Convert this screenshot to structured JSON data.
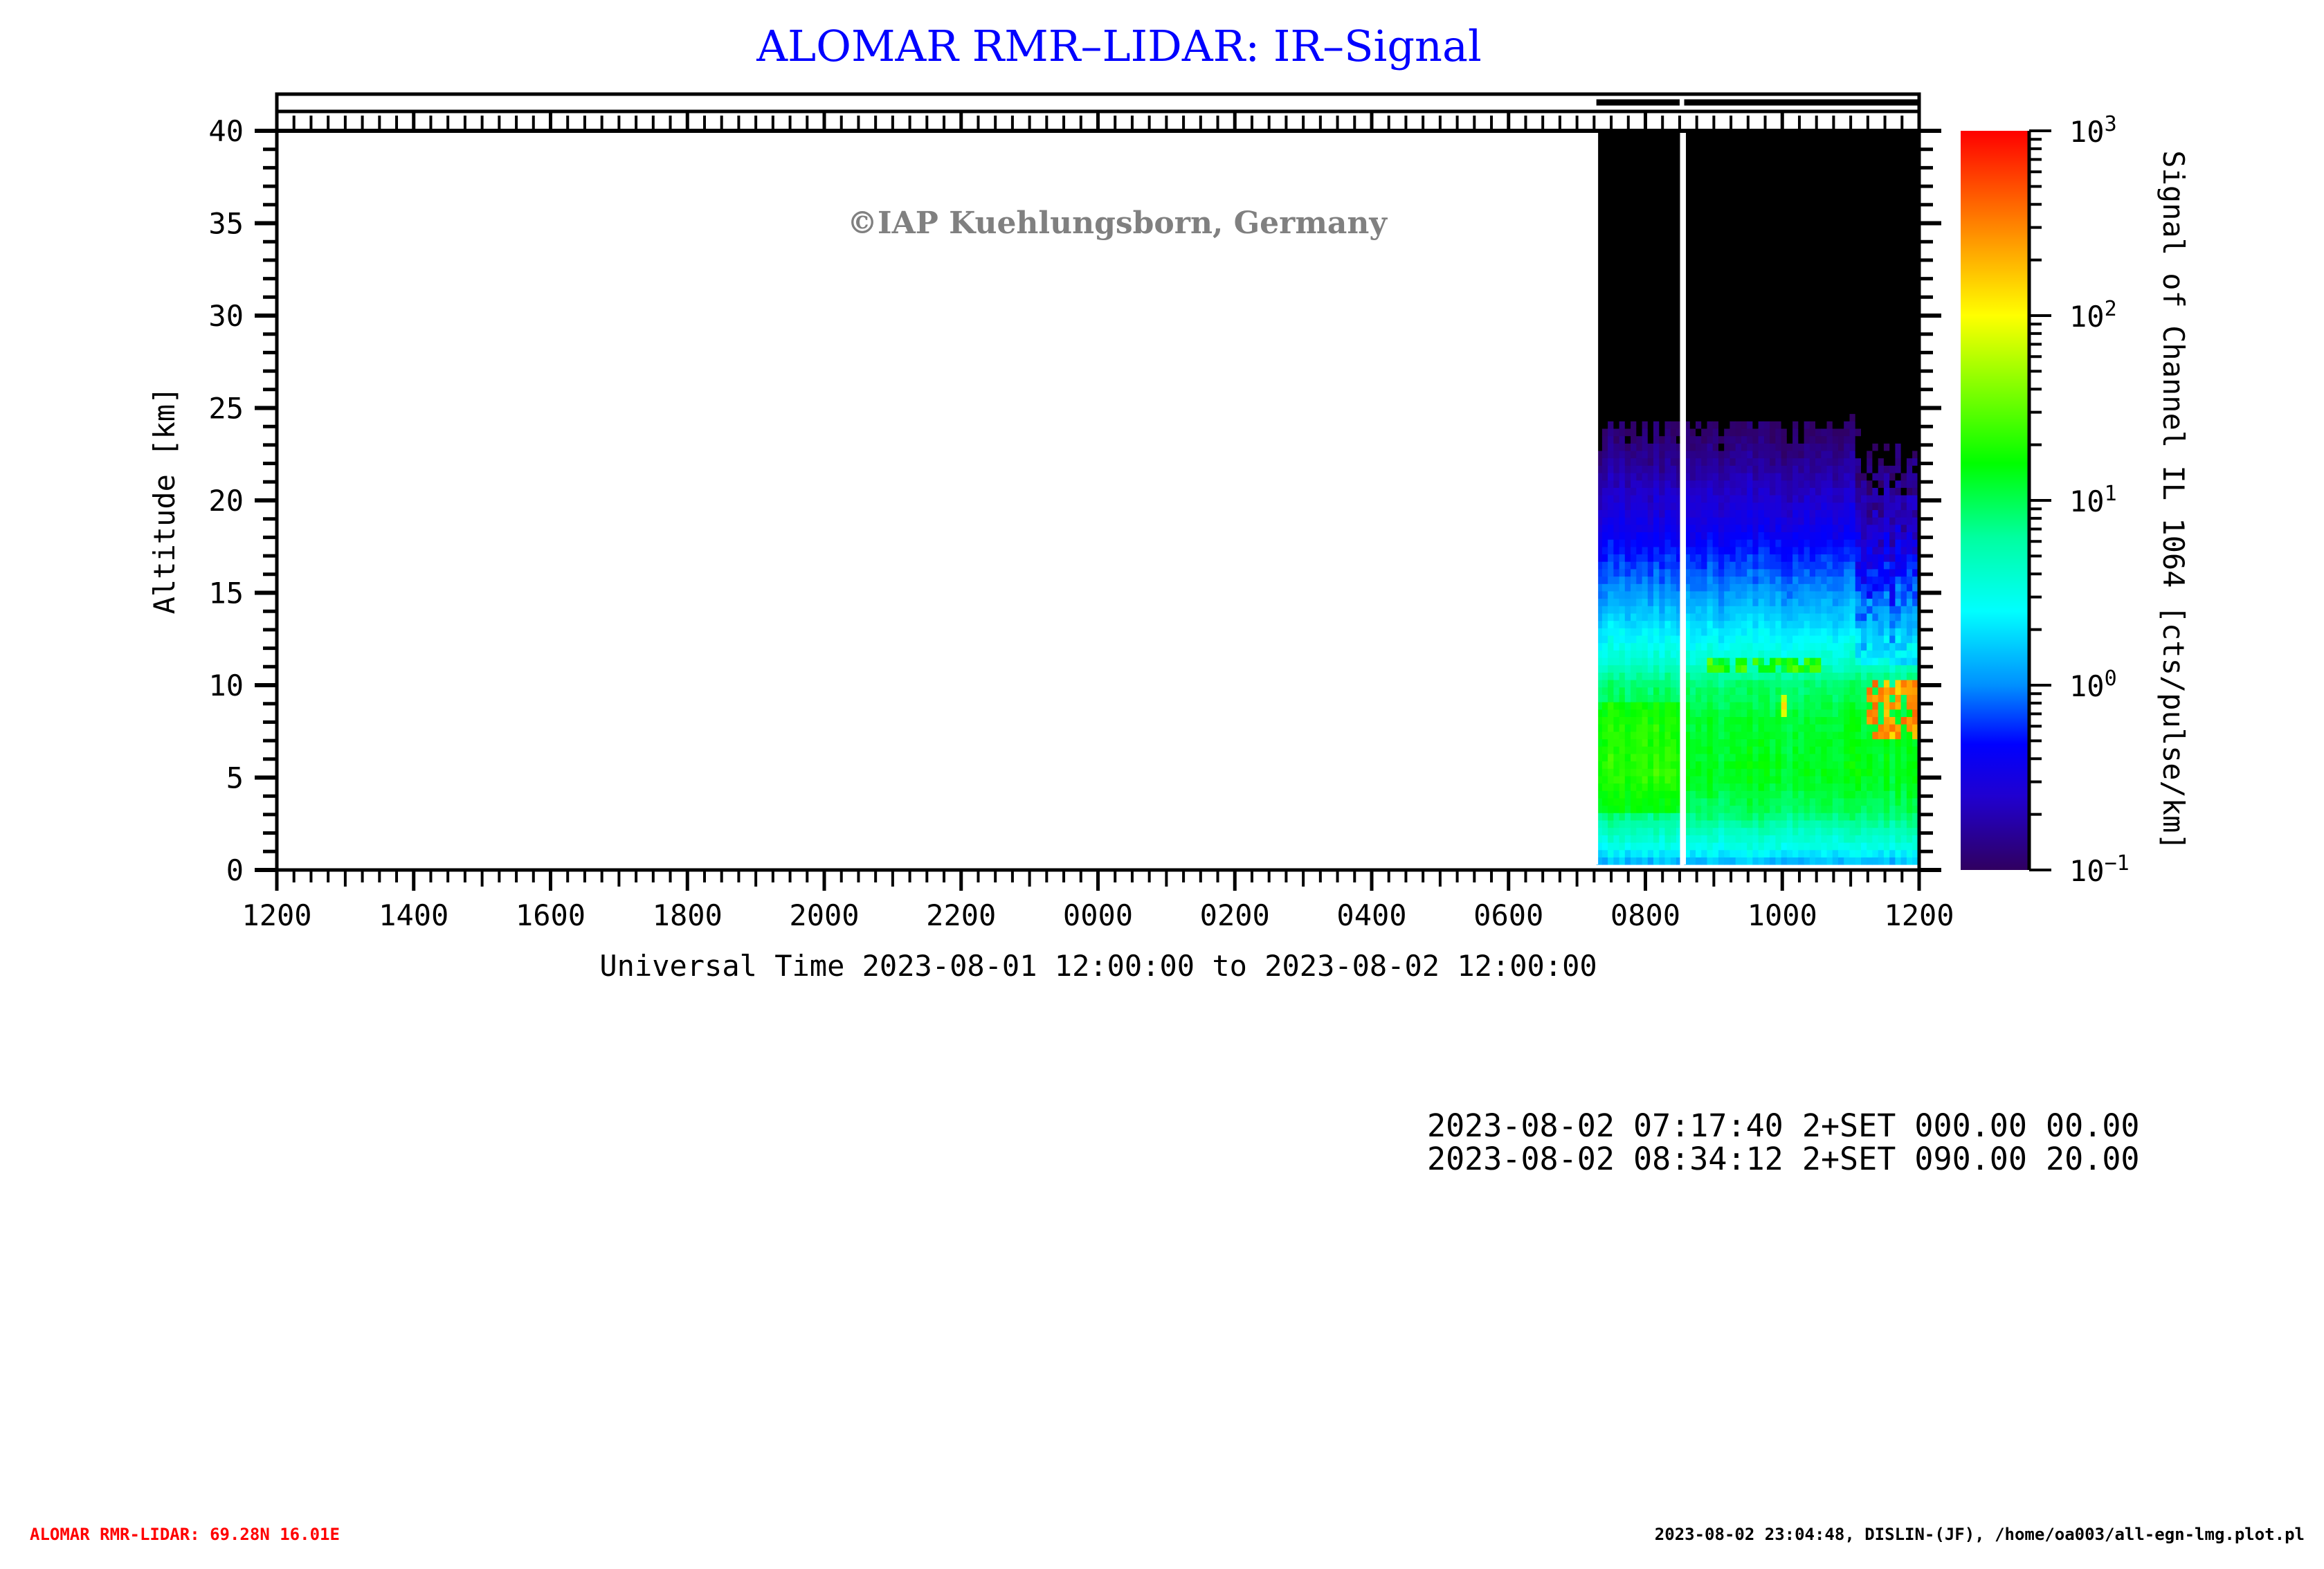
{
  "title": "ALOMAR RMR–LIDAR: IR–Signal",
  "watermark": "©IAP Kuehlungsborn, Germany",
  "info_lines": [
    "2023-08-02 07:17:40 2+SET 000.00 00.00",
    "2023-08-02 08:34:12 2+SET 090.00 20.00"
  ],
  "footer": {
    "left": "ALOMAR RMR-LIDAR: 69.28N 16.01E",
    "right": "2023-08-02 23:04:48, DISLIN-(JF), /home/oa003/all-egn-lmg.plot.pl"
  },
  "colors": {
    "title": "#0000ff",
    "footer_left": "#ff0000",
    "watermark": "#808080",
    "no_signal": "#000000"
  },
  "chart_data": {
    "type": "heatmap",
    "title": "ALOMAR RMR–LIDAR: IR–Signal",
    "xlabel": "Universal Time 2023-08-01 12:00:00 to 2023-08-02 12:00:00",
    "ylabel": "Altitude [km]",
    "colorbar_label": "Signal of Channel IL 1064 [cts/pulse/km]",
    "x_range_hours": [
      0,
      24
    ],
    "x_tick_labels": [
      "1200",
      "1400",
      "1600",
      "1800",
      "2000",
      "2200",
      "0000",
      "0200",
      "0400",
      "0600",
      "0800",
      "1000",
      "1200"
    ],
    "ylim": [
      0,
      40
    ],
    "y_ticks": [
      0,
      5,
      10,
      15,
      20,
      25,
      30,
      35,
      40
    ],
    "color_scale": "log",
    "color_range": [
      0.1,
      1000
    ],
    "colorbar_ticks": [
      {
        "base": "10",
        "exp": "-1"
      },
      {
        "base": "10",
        "exp": "0"
      },
      {
        "base": "10",
        "exp": "1"
      },
      {
        "base": "10",
        "exp": "2"
      },
      {
        "base": "10",
        "exp": "3"
      }
    ],
    "measurement_periods_ut": [
      [
        "07:17",
        "08:30"
      ],
      [
        "08:34",
        "12:00"
      ]
    ],
    "profile_altitude_km": [
      0.3,
      1,
      2,
      3,
      5,
      8,
      10,
      11,
      13,
      15,
      18,
      20,
      22,
      24,
      25
    ],
    "profile_signal": [
      1.5,
      3,
      5,
      9,
      14,
      12,
      8,
      4,
      2,
      1,
      0.4,
      0.25,
      0.15,
      0.1,
      0.05
    ],
    "features": [
      {
        "name": "",
        "time_ut": [
          "11:10",
          "12:00"
        ],
        "altitude_km": [
          7,
          10
        ],
        "signal": 300
      },
      {
        "name": "",
        "time_ut": [
          "08:50",
          "10:30"
        ],
        "altitude_km": [
          10.7,
          11.0
        ],
        "signal": 25
      },
      {
        "name": "",
        "time_ut": [
          "09:58",
          "10:02"
        ],
        "altitude_km": [
          8.5,
          9.0
        ],
        "signal": 100
      }
    ]
  }
}
